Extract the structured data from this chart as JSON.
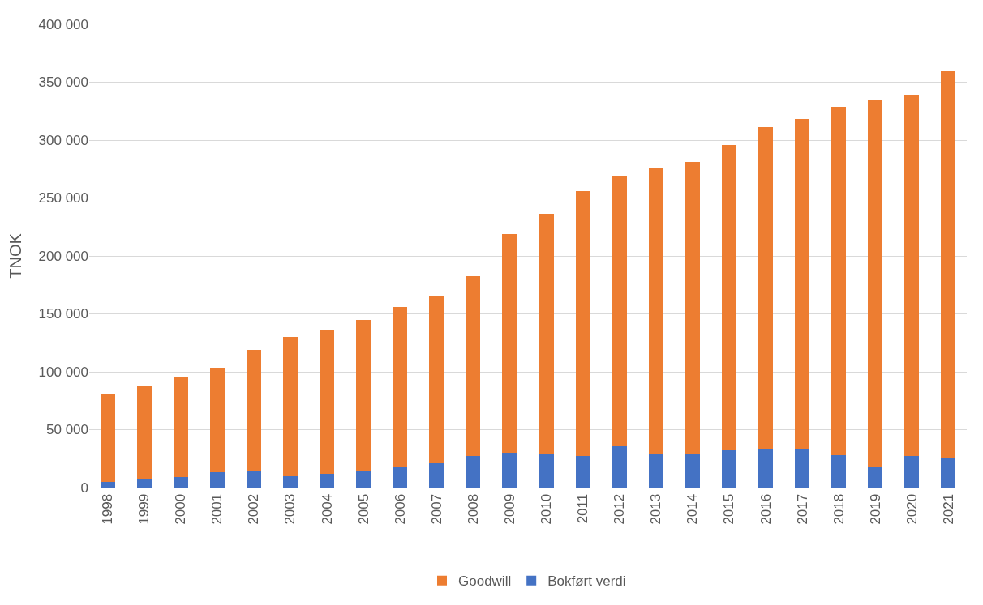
{
  "chart_data": {
    "type": "bar",
    "stacked": true,
    "ylabel": "TNOK",
    "categories": [
      "1998",
      "1999",
      "2000",
      "2001",
      "2002",
      "2003",
      "2004",
      "2005",
      "2006",
      "2007",
      "2008",
      "2009",
      "2010",
      "2011",
      "2012",
      "2013",
      "2014",
      "2015",
      "2016",
      "2017",
      "2018",
      "2019",
      "2020",
      "2021"
    ],
    "series": [
      {
        "name": "Bokført verdi",
        "color": "#4472c4",
        "values": [
          5000,
          8000,
          9000,
          13000,
          14000,
          10000,
          12000,
          14000,
          18000,
          21000,
          27000,
          30000,
          29000,
          27000,
          36000,
          29000,
          29000,
          32000,
          33000,
          33000,
          28000,
          18000,
          27000,
          26000
        ]
      },
      {
        "name": "Goodwill",
        "color": "#ed7d31",
        "values": [
          76000,
          80000,
          86500,
          90500,
          105000,
          120000,
          124500,
          131000,
          138000,
          144500,
          155500,
          189000,
          207500,
          229000,
          233000,
          247500,
          252000,
          263500,
          278000,
          285000,
          301000,
          317000,
          312000,
          333500
        ]
      }
    ],
    "ylim": [
      0,
      400000
    ],
    "yticks": [
      {
        "value": 0,
        "label": "0"
      },
      {
        "value": 50000,
        "label": "50 000"
      },
      {
        "value": 100000,
        "label": "100 000"
      },
      {
        "value": 150000,
        "label": "150 000"
      },
      {
        "value": 200000,
        "label": "200 000"
      },
      {
        "value": 250000,
        "label": "250 000"
      },
      {
        "value": 300000,
        "label": "300 000"
      },
      {
        "value": 350000,
        "label": "350 000"
      },
      {
        "value": 400000,
        "label": "400 000"
      }
    ],
    "grid": "y",
    "legend": "bottom"
  }
}
